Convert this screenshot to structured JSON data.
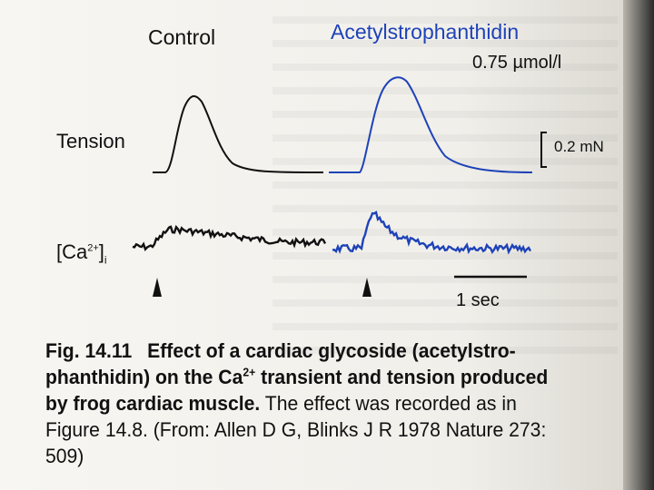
{
  "figure": {
    "control_label": "Control",
    "drug_label": "Acetylstrophanthidin",
    "concentration_label": "0.75 µmol/l",
    "tension_label": "Tension",
    "tension_scale_label": "0.2 mN",
    "calcium_label_main": "[Ca",
    "calcium_label_sup": "2+",
    "calcium_label_close": "]",
    "calcium_label_sub": "i",
    "time_scale_label": "1 sec"
  },
  "caption": {
    "figure_number": "Fig. 14.11",
    "bold_text_1": "Effect of a cardiac glycoside (acetylstro-phanthidin) on the Ca",
    "bold_sup": "2+",
    "bold_text_2": " transient and tension produced by frog cardiac muscle.",
    "regular_text": " The effect was recorded as in Figure 14.8. (From: Allen D G, Blinks J R 1978 Nature 273: 509)"
  },
  "colors": {
    "control_trace": "#111111",
    "drug_trace": "#1e43b8"
  }
}
